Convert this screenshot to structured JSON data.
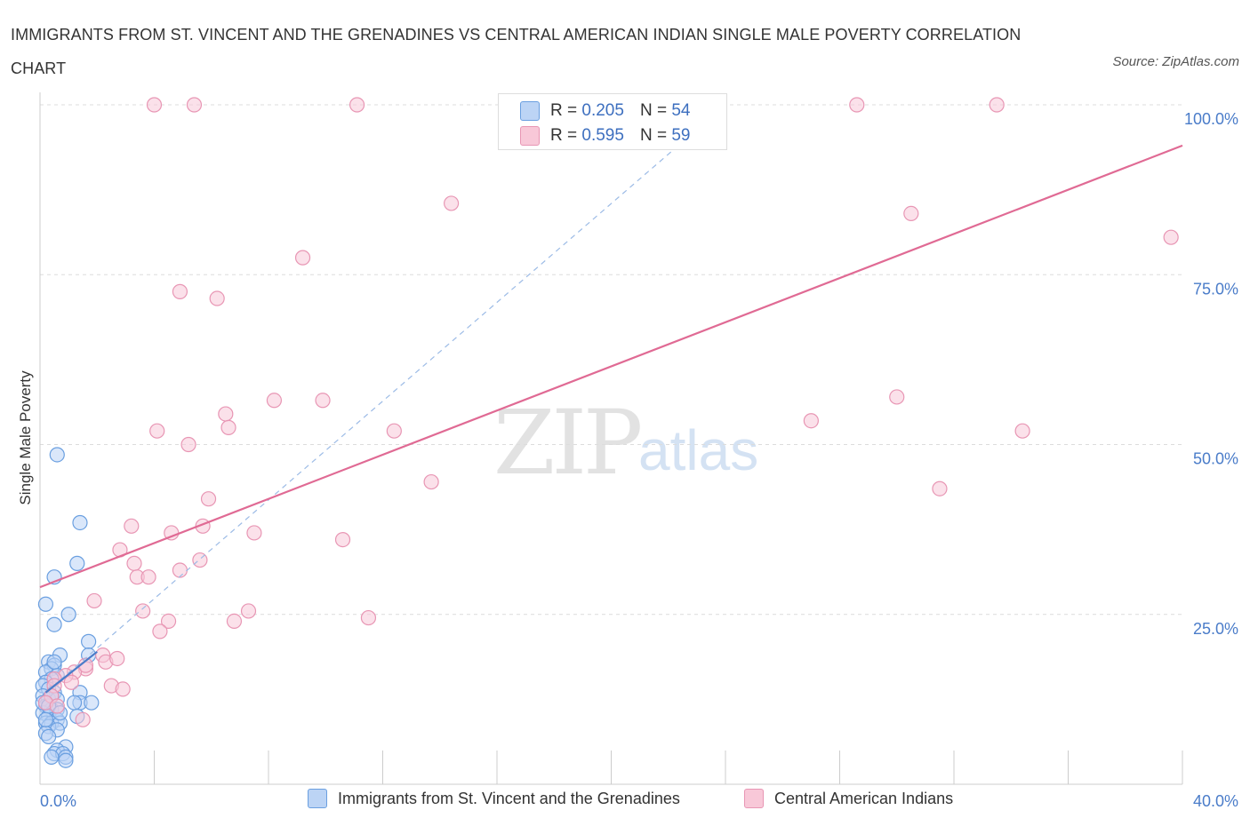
{
  "title": "IMMIGRANTS FROM ST. VINCENT AND THE GRENADINES VS CENTRAL AMERICAN INDIAN SINGLE MALE POVERTY CORRELATION CHART",
  "source": "Source: ZipAtlas.com",
  "watermark": {
    "zip": "ZIP",
    "atlas": "atlas"
  },
  "legend": {
    "r_label": "R =",
    "n_label": "N =",
    "series_a": {
      "r": "0.205",
      "n": "54"
    },
    "series_b": {
      "r": "0.595",
      "n": "59"
    }
  },
  "colors": {
    "series_a_fill": "#bcd4f5",
    "series_a_stroke": "#6a9fe0",
    "series_a_line": "#4a7cc9",
    "series_b_fill": "#f8c8d8",
    "series_b_stroke": "#e896b4",
    "series_b_line": "#e06a94",
    "axis_text": "#4a7cc9"
  },
  "chart_data": {
    "type": "scatter",
    "title": "IMMIGRANTS FROM ST. VINCENT AND THE GRENADINES VS CENTRAL AMERICAN INDIAN SINGLE MALE POVERTY CORRELATION CHART",
    "xlabel": "",
    "ylabel": "Single Male Poverty",
    "xlim": [
      0,
      40
    ],
    "ylim": [
      0,
      100
    ],
    "x_tick_labels": [
      "0.0%",
      "40.0%"
    ],
    "y_tick_labels": [
      "25.0%",
      "50.0%",
      "75.0%",
      "100.0%"
    ],
    "y_ticks": [
      25,
      50,
      75,
      100
    ],
    "x_ticks": [
      0,
      4,
      8,
      12,
      16,
      20,
      24,
      28,
      32,
      36,
      40
    ],
    "grid": true,
    "legend_position": "top-center",
    "series": [
      {
        "name": "Immigrants from St. Vincent and the Grenadines",
        "r": 0.205,
        "n": 54,
        "trend": {
          "x": [
            0.2,
            2.0
          ],
          "y": [
            13.5,
            19.5
          ],
          "style": "solid"
        },
        "trend_ext": {
          "x": [
            0.2,
            24.0
          ],
          "y": [
            13.5,
            100.0
          ],
          "style": "dashed"
        },
        "points": [
          [
            0.6,
            48.5
          ],
          [
            1.4,
            38.5
          ],
          [
            1.3,
            32.5
          ],
          [
            0.5,
            30.5
          ],
          [
            0.2,
            26.5
          ],
          [
            1.0,
            25.0
          ],
          [
            0.5,
            23.5
          ],
          [
            1.7,
            21.0
          ],
          [
            0.7,
            19.0
          ],
          [
            1.7,
            19.0
          ],
          [
            0.3,
            18.0
          ],
          [
            0.5,
            17.5
          ],
          [
            0.4,
            17.0
          ],
          [
            0.2,
            16.5
          ],
          [
            0.6,
            16.0
          ],
          [
            0.4,
            15.5
          ],
          [
            0.2,
            15.0
          ],
          [
            0.1,
            14.5
          ],
          [
            0.3,
            14.0
          ],
          [
            0.5,
            13.5
          ],
          [
            1.4,
            13.5
          ],
          [
            0.1,
            13.0
          ],
          [
            0.3,
            12.5
          ],
          [
            0.6,
            12.5
          ],
          [
            1.4,
            12.0
          ],
          [
            1.8,
            12.0
          ],
          [
            1.2,
            12.0
          ],
          [
            0.2,
            11.5
          ],
          [
            0.4,
            11.0
          ],
          [
            0.6,
            11.0
          ],
          [
            0.1,
            10.5
          ],
          [
            0.3,
            10.0
          ],
          [
            1.3,
            10.0
          ],
          [
            0.6,
            9.5
          ],
          [
            0.2,
            9.0
          ],
          [
            0.4,
            9.0
          ],
          [
            0.7,
            9.0
          ],
          [
            0.3,
            8.5
          ],
          [
            0.6,
            8.0
          ],
          [
            0.2,
            7.5
          ],
          [
            0.3,
            7.0
          ],
          [
            0.9,
            5.5
          ],
          [
            0.6,
            5.0
          ],
          [
            0.5,
            4.5
          ],
          [
            0.8,
            4.5
          ],
          [
            0.4,
            4.0
          ],
          [
            0.9,
            4.0
          ],
          [
            0.9,
            3.5
          ],
          [
            0.1,
            12.0
          ],
          [
            0.5,
            18.0
          ],
          [
            0.3,
            11.5
          ],
          [
            0.2,
            9.5
          ],
          [
            0.4,
            13.0
          ],
          [
            0.7,
            10.5
          ]
        ]
      },
      {
        "name": "Central American Indians",
        "r": 0.595,
        "n": 59,
        "trend": {
          "x": [
            0,
            40
          ],
          "y": [
            29.0,
            94.0
          ],
          "style": "solid"
        },
        "points": [
          [
            4.0,
            100.0
          ],
          [
            5.4,
            100.0
          ],
          [
            11.1,
            100.0
          ],
          [
            18.9,
            100.0
          ],
          [
            28.6,
            100.0
          ],
          [
            33.5,
            100.0
          ],
          [
            14.4,
            85.5
          ],
          [
            30.5,
            84.0
          ],
          [
            39.6,
            80.5
          ],
          [
            9.2,
            77.5
          ],
          [
            4.9,
            72.5
          ],
          [
            6.2,
            71.5
          ],
          [
            8.2,
            56.5
          ],
          [
            9.9,
            56.5
          ],
          [
            6.5,
            54.5
          ],
          [
            30.0,
            57.0
          ],
          [
            27.0,
            53.5
          ],
          [
            6.6,
            52.5
          ],
          [
            4.1,
            52.0
          ],
          [
            12.4,
            52.0
          ],
          [
            34.4,
            52.0
          ],
          [
            5.2,
            50.0
          ],
          [
            13.7,
            44.5
          ],
          [
            31.5,
            43.5
          ],
          [
            5.9,
            42.0
          ],
          [
            3.2,
            38.0
          ],
          [
            5.7,
            38.0
          ],
          [
            4.6,
            37.0
          ],
          [
            7.5,
            37.0
          ],
          [
            10.6,
            36.0
          ],
          [
            2.8,
            34.5
          ],
          [
            5.6,
            33.0
          ],
          [
            3.3,
            32.5
          ],
          [
            4.9,
            31.5
          ],
          [
            3.4,
            30.5
          ],
          [
            3.8,
            30.5
          ],
          [
            1.9,
            27.0
          ],
          [
            3.6,
            25.5
          ],
          [
            7.3,
            25.5
          ],
          [
            4.5,
            24.0
          ],
          [
            6.8,
            24.0
          ],
          [
            11.5,
            24.5
          ],
          [
            4.2,
            22.5
          ],
          [
            2.2,
            19.0
          ],
          [
            2.3,
            18.0
          ],
          [
            2.7,
            18.5
          ],
          [
            1.6,
            17.0
          ],
          [
            1.2,
            16.5
          ],
          [
            1.6,
            17.5
          ],
          [
            0.9,
            16.0
          ],
          [
            0.5,
            15.5
          ],
          [
            1.1,
            15.0
          ],
          [
            2.5,
            14.5
          ],
          [
            2.9,
            14.0
          ],
          [
            0.5,
            14.5
          ],
          [
            0.4,
            13.0
          ],
          [
            0.2,
            12.0
          ],
          [
            0.6,
            11.5
          ],
          [
            1.5,
            9.5
          ]
        ]
      }
    ]
  }
}
